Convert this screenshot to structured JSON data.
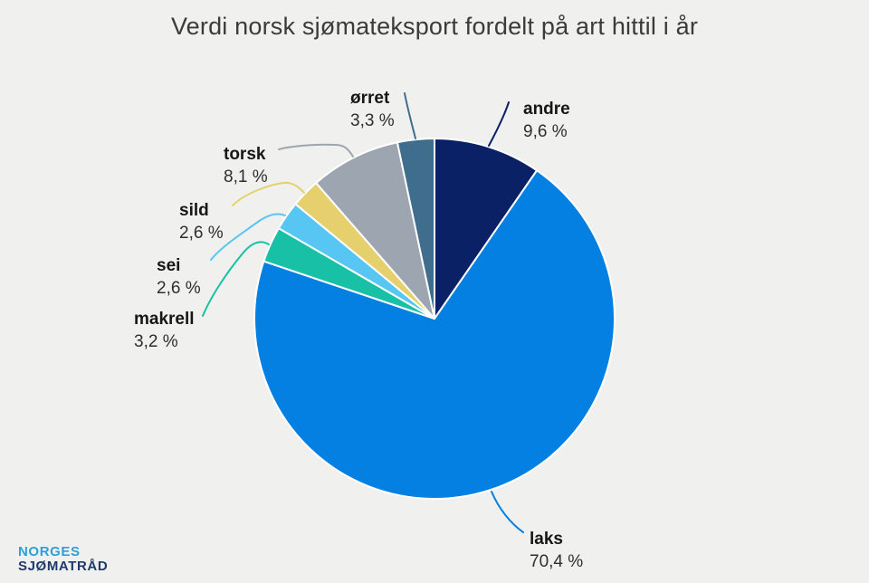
{
  "page": {
    "background": "#f0f1ee"
  },
  "chart": {
    "title": "Verdi norsk sjømateksport fordelt på art hittil i år"
  },
  "chart_data": {
    "type": "pie",
    "title": "Verdi norsk sjømateksport fordelt på art hittil i år",
    "unit": "%",
    "start_angle_deg": 0,
    "direction": "clockwise",
    "legend": "none",
    "data_labels": "outside-with-connectors",
    "slices": [
      {
        "id": "andre",
        "label": "andre",
        "value": 9.6,
        "pct_label": "9,6 %",
        "color": "#0a2166"
      },
      {
        "id": "laks",
        "label": "laks",
        "value": 70.4,
        "pct_label": "70,4 %",
        "color": "#0480e2"
      },
      {
        "id": "makrell",
        "label": "makrell",
        "value": 3.2,
        "pct_label": "3,2 %",
        "color": "#18c0a6"
      },
      {
        "id": "sei",
        "label": "sei",
        "value": 2.6,
        "pct_label": "2,6 %",
        "color": "#57c6f2"
      },
      {
        "id": "sild",
        "label": "sild",
        "value": 2.6,
        "pct_label": "2,6 %",
        "color": "#e6d06e"
      },
      {
        "id": "torsk",
        "label": "torsk",
        "value": 8.1,
        "pct_label": "8,1 %",
        "color": "#9da6b0"
      },
      {
        "id": "orret",
        "label": "ørret",
        "value": 3.3,
        "pct_label": "3,3 %",
        "color": "#3e6d8e"
      }
    ]
  },
  "logo": {
    "line1": "NORGES",
    "line2": "SJØMATRÅD",
    "color1": "#2e9fd9",
    "color2": "#1d3a6b"
  }
}
